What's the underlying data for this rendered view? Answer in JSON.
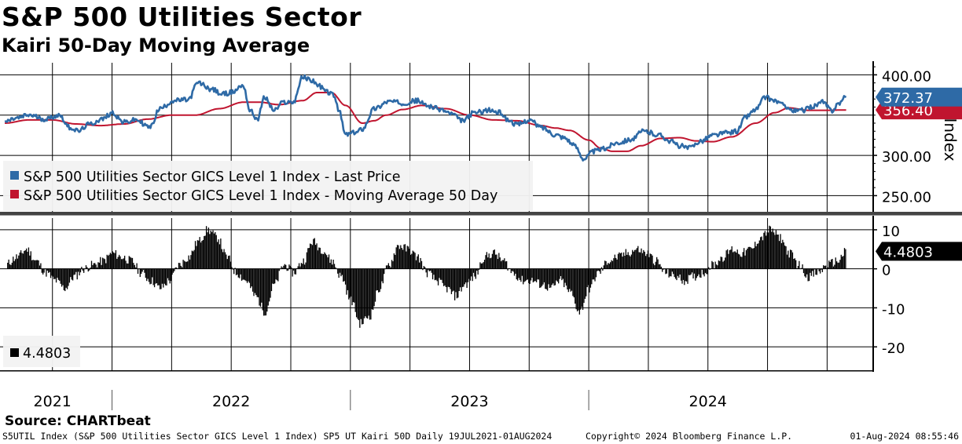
{
  "header": {
    "title": "S&P 500 Utilities Sector",
    "subtitle": "Kairi 50-Day Moving Average"
  },
  "footer": {
    "source": "Source: CHARTbeat",
    "description": "S5UTIL Index (S&P 500 Utilities Sector GICS Level 1 Index) SP5 UT Kairi 50D  Daily 19JUL2021-01AUG2024",
    "copyright": "Copyright© 2024 Bloomberg Finance L.P.",
    "timestamp": "01-Aug-2024 08:55:46"
  },
  "colors": {
    "price": "#2e6aa6",
    "moving_average": "#c0152f",
    "histogram": "#000000",
    "grid": "#000000",
    "divider": "#444444"
  },
  "chart_data": [
    {
      "type": "line",
      "title": "S&P 500 Utilities Sector",
      "ylabel": "Index",
      "ylim": [
        228,
        415
      ],
      "yticks": [
        250,
        300,
        400
      ],
      "ytick_labels": [
        "250.00",
        "300.00",
        "400.00"
      ],
      "grid": true,
      "legend_position": "bottom-left",
      "x_year_labels": [
        "2021",
        "2022",
        "2023",
        "2024"
      ],
      "series": [
        {
          "name": "S&P 500 Utilities Sector GICS Level 1 Index - Last Price",
          "color": "#2e6aa6",
          "last_value_label": "372.37",
          "anchors": [
            [
              2021.55,
              342
            ],
            [
              2021.6,
              346
            ],
            [
              2021.65,
              350
            ],
            [
              2021.72,
              345
            ],
            [
              2021.78,
              350
            ],
            [
              2021.82,
              335
            ],
            [
              2021.86,
              330
            ],
            [
              2021.9,
              338
            ],
            [
              2021.96,
              345
            ],
            [
              2022.0,
              353
            ],
            [
              2022.05,
              341
            ],
            [
              2022.1,
              344
            ],
            [
              2022.16,
              335
            ],
            [
              2022.2,
              358
            ],
            [
              2022.26,
              368
            ],
            [
              2022.32,
              369
            ],
            [
              2022.36,
              390
            ],
            [
              2022.42,
              382
            ],
            [
              2022.46,
              376
            ],
            [
              2022.5,
              378
            ],
            [
              2022.55,
              387
            ],
            [
              2022.58,
              355
            ],
            [
              2022.61,
              345
            ],
            [
              2022.64,
              372
            ],
            [
              2022.68,
              356
            ],
            [
              2022.72,
              366
            ],
            [
              2022.76,
              366
            ],
            [
              2022.8,
              397
            ],
            [
              2022.84,
              393
            ],
            [
              2022.87,
              386
            ],
            [
              2022.9,
              379
            ],
            [
              2022.93,
              375
            ],
            [
              2022.95,
              357
            ],
            [
              2022.98,
              326
            ],
            [
              2023.02,
              328
            ],
            [
              2023.05,
              333
            ],
            [
              2023.1,
              358
            ],
            [
              2023.16,
              367
            ],
            [
              2023.22,
              365
            ],
            [
              2023.28,
              368
            ],
            [
              2023.32,
              362
            ],
            [
              2023.38,
              357
            ],
            [
              2023.42,
              352
            ],
            [
              2023.47,
              343
            ],
            [
              2023.52,
              353
            ],
            [
              2023.58,
              356
            ],
            [
              2023.63,
              353
            ],
            [
              2023.66,
              344
            ],
            [
              2023.7,
              338
            ],
            [
              2023.75,
              344
            ],
            [
              2023.8,
              335
            ],
            [
              2023.86,
              326
            ],
            [
              2023.9,
              322
            ],
            [
              2023.94,
              312
            ],
            [
              2023.98,
              296
            ],
            [
              2024.02,
              305
            ],
            [
              2024.06,
              308
            ],
            [
              2024.12,
              316
            ],
            [
              2024.18,
              320
            ],
            [
              2024.23,
              330
            ],
            [
              2024.3,
              325
            ],
            [
              2024.34,
              318
            ],
            [
              2024.38,
              312
            ],
            [
              2024.42,
              309
            ],
            [
              2024.47,
              318
            ],
            [
              2024.52,
              325
            ],
            [
              2024.58,
              328
            ],
            [
              2024.62,
              330
            ],
            [
              2024.66,
              348
            ],
            [
              2024.7,
              357
            ],
            [
              2024.74,
              372
            ],
            [
              2024.78,
              368
            ],
            [
              2024.82,
              362
            ],
            [
              2024.86,
              355
            ],
            [
              2024.9,
              356
            ],
            [
              2024.94,
              361
            ],
            [
              2024.98,
              366
            ],
            [
              2025.02,
              356
            ],
            [
              2025.05,
              365
            ],
            [
              2025.08,
              372.37
            ]
          ]
        },
        {
          "name": "S&P 500 Utilities Sector GICS Level 1 Index - Moving Average 50 Day",
          "color": "#c0152f",
          "last_value_label": "356.40",
          "anchors": [
            [
              2021.55,
              340
            ],
            [
              2021.65,
              344
            ],
            [
              2021.75,
              344
            ],
            [
              2021.85,
              339
            ],
            [
              2021.95,
              337
            ],
            [
              2022.05,
              339
            ],
            [
              2022.15,
              345
            ],
            [
              2022.25,
              350
            ],
            [
              2022.35,
              350
            ],
            [
              2022.45,
              358
            ],
            [
              2022.55,
              366
            ],
            [
              2022.62,
              366
            ],
            [
              2022.7,
              363
            ],
            [
              2022.8,
              368
            ],
            [
              2022.86,
              378
            ],
            [
              2022.92,
              378
            ],
            [
              2022.98,
              362
            ],
            [
              2023.05,
              340
            ],
            [
              2023.1,
              343
            ],
            [
              2023.15,
              350
            ],
            [
              2023.22,
              357
            ],
            [
              2023.3,
              362
            ],
            [
              2023.4,
              358
            ],
            [
              2023.5,
              350
            ],
            [
              2023.6,
              344
            ],
            [
              2023.7,
              343
            ],
            [
              2023.8,
              337
            ],
            [
              2023.86,
              334
            ],
            [
              2023.92,
              331
            ],
            [
              2024.0,
              319
            ],
            [
              2024.05,
              309
            ],
            [
              2024.1,
              305
            ],
            [
              2024.16,
              305
            ],
            [
              2024.22,
              312
            ],
            [
              2024.3,
              321
            ],
            [
              2024.38,
              322
            ],
            [
              2024.45,
              318
            ],
            [
              2024.52,
              317
            ],
            [
              2024.6,
              323
            ],
            [
              2024.7,
              340
            ],
            [
              2024.78,
              353
            ],
            [
              2024.84,
              359
            ],
            [
              2024.92,
              356
            ],
            [
              2025.0,
              356
            ],
            [
              2025.08,
              356.4
            ]
          ]
        }
      ]
    },
    {
      "type": "bar",
      "title": "SP5 UT Kairi 50D",
      "ylim": [
        -26,
        13
      ],
      "yticks": [
        -20,
        -10,
        0,
        10
      ],
      "ytick_labels": [
        "-20",
        "-10",
        "0",
        "10"
      ],
      "grid": true,
      "legend_position": "bottom-left",
      "last_value_label": "4.4803",
      "series": [
        {
          "name": "4.4803",
          "color": "#000000",
          "anchors": [
            [
              2021.55,
              1
            ],
            [
              2021.6,
              3
            ],
            [
              2021.64,
              5
            ],
            [
              2021.68,
              2
            ],
            [
              2021.72,
              -1
            ],
            [
              2021.76,
              -3
            ],
            [
              2021.8,
              -5
            ],
            [
              2021.84,
              -2
            ],
            [
              2021.88,
              0
            ],
            [
              2021.92,
              1
            ],
            [
              2021.96,
              2
            ],
            [
              2022.0,
              4
            ],
            [
              2022.04,
              3
            ],
            [
              2022.08,
              2
            ],
            [
              2022.12,
              -1
            ],
            [
              2022.16,
              -3
            ],
            [
              2022.2,
              -5
            ],
            [
              2022.24,
              -3
            ],
            [
              2022.28,
              1
            ],
            [
              2022.32,
              3
            ],
            [
              2022.36,
              7
            ],
            [
              2022.4,
              10
            ],
            [
              2022.44,
              8
            ],
            [
              2022.48,
              3
            ],
            [
              2022.52,
              -1
            ],
            [
              2022.56,
              -3
            ],
            [
              2022.6,
              -7
            ],
            [
              2022.64,
              -11
            ],
            [
              2022.68,
              -4
            ],
            [
              2022.72,
              1
            ],
            [
              2022.76,
              -1
            ],
            [
              2022.8,
              2
            ],
            [
              2022.84,
              7
            ],
            [
              2022.88,
              5
            ],
            [
              2022.92,
              2
            ],
            [
              2022.96,
              -2
            ],
            [
              2023.0,
              -8
            ],
            [
              2023.04,
              -14
            ],
            [
              2023.08,
              -12
            ],
            [
              2023.12,
              -5
            ],
            [
              2023.16,
              1
            ],
            [
              2023.2,
              6
            ],
            [
              2023.24,
              5
            ],
            [
              2023.28,
              3
            ],
            [
              2023.32,
              -1
            ],
            [
              2023.36,
              -3
            ],
            [
              2023.4,
              -5
            ],
            [
              2023.44,
              -7
            ],
            [
              2023.48,
              -4
            ],
            [
              2023.52,
              -2
            ],
            [
              2023.56,
              3
            ],
            [
              2023.6,
              4
            ],
            [
              2023.64,
              2
            ],
            [
              2023.68,
              -1
            ],
            [
              2023.72,
              -3
            ],
            [
              2023.76,
              -3
            ],
            [
              2023.8,
              -4
            ],
            [
              2023.84,
              -5
            ],
            [
              2023.88,
              -3
            ],
            [
              2023.92,
              -6
            ],
            [
              2023.96,
              -11
            ],
            [
              2024.0,
              -5
            ],
            [
              2024.04,
              -1
            ],
            [
              2024.08,
              2
            ],
            [
              2024.12,
              3
            ],
            [
              2024.16,
              4
            ],
            [
              2024.2,
              5
            ],
            [
              2024.24,
              4
            ],
            [
              2024.28,
              2
            ],
            [
              2024.32,
              -1
            ],
            [
              2024.36,
              -2
            ],
            [
              2024.4,
              -3
            ],
            [
              2024.44,
              -2
            ],
            [
              2024.48,
              -1
            ],
            [
              2024.52,
              1
            ],
            [
              2024.56,
              3
            ],
            [
              2024.6,
              5
            ],
            [
              2024.64,
              4
            ],
            [
              2024.68,
              5
            ],
            [
              2024.72,
              8
            ],
            [
              2024.76,
              10
            ],
            [
              2024.8,
              8
            ],
            [
              2024.84,
              4
            ],
            [
              2024.88,
              1
            ],
            [
              2024.92,
              -2
            ],
            [
              2024.96,
              -1
            ],
            [
              2025.0,
              1
            ],
            [
              2025.04,
              2
            ],
            [
              2025.08,
              4.4803
            ]
          ]
        }
      ]
    }
  ]
}
